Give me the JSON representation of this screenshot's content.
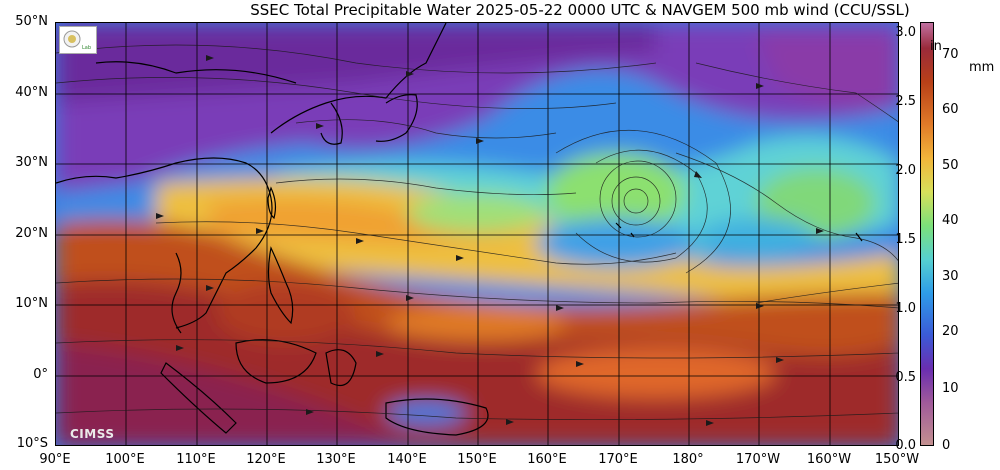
{
  "title": "SSEC Total Precipitable Water  2025-05-22 0000 UTC & NAVGEM 500 mb wind (CCU/SSL)",
  "latitude_labels": [
    "50°N",
    "40°N",
    "30°N",
    "20°N",
    "10°N",
    "0°",
    "10°S"
  ],
  "longitude_labels": [
    "90°E",
    "100°E",
    "110°E",
    "120°E",
    "130°E",
    "140°E",
    "150°E",
    "160°E",
    "170°E",
    "180°",
    "170°W",
    "160°W",
    "150°W"
  ],
  "colorbar": {
    "inch_unit": "in",
    "mm_unit": "mm",
    "inch_ticks": [
      "3.0",
      "2.5",
      "2.0",
      "1.5",
      "1.0",
      "0.5",
      "0.0"
    ],
    "mm_ticks": [
      "70",
      "60",
      "50",
      "40",
      "30",
      "20",
      "10",
      "0"
    ],
    "colors": [
      "#c39090",
      "#a05a9a",
      "#6a2eb0",
      "#3b5ad8",
      "#2e9ce8",
      "#56d0d0",
      "#7ce07a",
      "#d8e05a",
      "#f2b53a",
      "#e07a28",
      "#b84018",
      "#9a2a3a"
    ]
  },
  "logo_text": "CIMSS"
}
